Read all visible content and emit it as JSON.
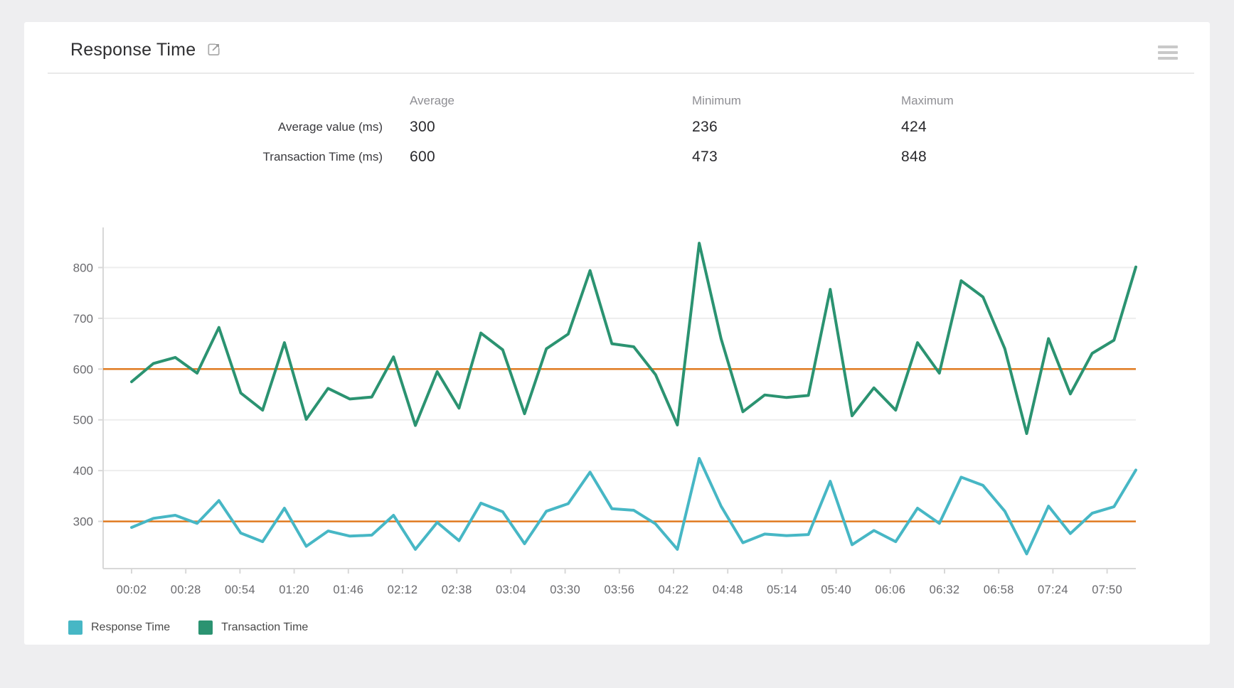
{
  "header": {
    "title": "Response Time",
    "icons": {
      "expand": "open-in-new-window",
      "menu": "chart-options-menu"
    }
  },
  "stats": {
    "columns": [
      "Average",
      "Minimum",
      "Maximum"
    ],
    "rows": [
      {
        "label": "Average value (ms)",
        "average": "300",
        "minimum": "236",
        "maximum": "424"
      },
      {
        "label": "Transaction Time (ms)",
        "average": "600",
        "minimum": "473",
        "maximum": "848"
      }
    ]
  },
  "chart_data": {
    "type": "line",
    "title": "Response Time",
    "xlabel": "",
    "ylabel": "",
    "ylim": [
      207,
      879
    ],
    "y_ticks": [
      300,
      400,
      500,
      600,
      700,
      800
    ],
    "x_tick_labels": [
      "00:02",
      "00:28",
      "00:54",
      "01:20",
      "01:46",
      "02:12",
      "02:38",
      "03:04",
      "03:30",
      "03:56",
      "04:22",
      "04:48",
      "05:14",
      "05:40",
      "06:06",
      "06:32",
      "06:58",
      "07:24",
      "07:50"
    ],
    "grid": true,
    "legend_position": "bottom-left",
    "axis_color": "#d8d8d8",
    "grid_color": "#ededed",
    "tick_text_color": "#6a6a6e",
    "average_lines": [
      {
        "label": "Average value average",
        "value": 300,
        "color": "#e07b21"
      },
      {
        "label": "Transaction Time average",
        "value": 600,
        "color": "#e07b21"
      }
    ],
    "series": [
      {
        "name": "Transaction Time",
        "color": "#2b9371",
        "values": [
          575,
          611,
          623,
          592,
          682,
          553,
          519,
          652,
          501,
          562,
          541,
          545,
          624,
          489,
          595,
          523,
          671,
          638,
          512,
          640,
          669,
          794,
          650,
          644,
          589,
          490,
          848,
          660,
          516,
          549,
          544,
          548,
          757,
          508,
          563,
          519,
          652,
          592,
          774,
          742,
          640,
          473,
          660,
          551,
          631,
          657,
          801
        ]
      },
      {
        "name": "Response Time",
        "color": "#47b7c5",
        "values": [
          288,
          306,
          312,
          296,
          341,
          277,
          260,
          326,
          251,
          281,
          271,
          273,
          312,
          245,
          298,
          262,
          336,
          319,
          256,
          320,
          335,
          397,
          325,
          322,
          295,
          245,
          424,
          330,
          258,
          275,
          272,
          274,
          379,
          254,
          282,
          260,
          326,
          296,
          387,
          371,
          320,
          236,
          330,
          276,
          316,
          329,
          401
        ]
      }
    ],
    "legend": [
      "Response Time",
      "Transaction Time"
    ]
  }
}
